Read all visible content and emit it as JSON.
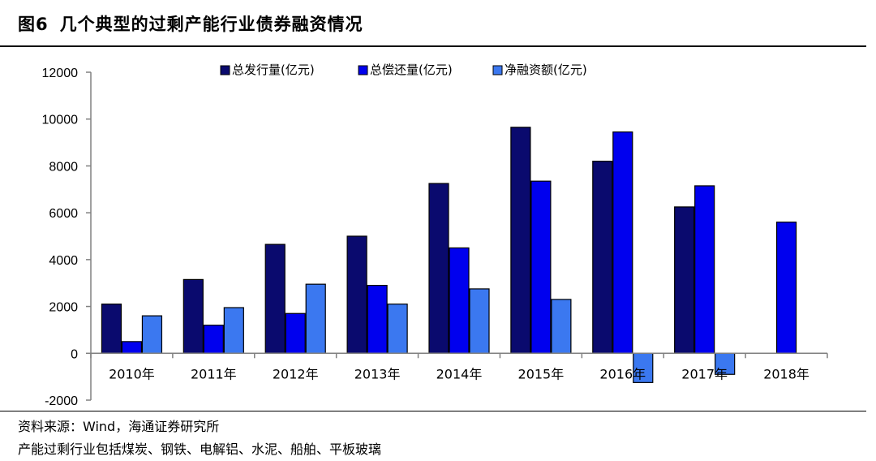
{
  "figure": {
    "number": "图6",
    "title": "几个典型的过剩产能行业债券融资情况"
  },
  "chart_data": {
    "type": "bar",
    "categories": [
      "2010年",
      "2011年",
      "2012年",
      "2013年",
      "2014年",
      "2015年",
      "2016年",
      "2017年",
      "2018年"
    ],
    "series": [
      {
        "name": "总发行量(亿元)",
        "color": "#0a0a6e",
        "values": [
          2100,
          3150,
          4650,
          5000,
          7250,
          9650,
          8200,
          6250,
          null
        ]
      },
      {
        "name": "总偿还量(亿元)",
        "color": "#0000ee",
        "values": [
          500,
          1200,
          1700,
          2900,
          4500,
          7350,
          9450,
          7150,
          5600
        ]
      },
      {
        "name": "净融资额(亿元)",
        "color": "#3b78f0",
        "values": [
          1600,
          1950,
          2950,
          2100,
          2750,
          2300,
          -1250,
          -900,
          null
        ]
      }
    ],
    "ylim": [
      -2000,
      12000
    ],
    "yticks": [
      -2000,
      0,
      2000,
      4000,
      6000,
      8000,
      10000,
      12000
    ],
    "ytick_labels": [
      "-2000",
      "0",
      "2000",
      "4000",
      "6000",
      "8000",
      "10000",
      "12000"
    ],
    "legend_position": "top-center",
    "grid": false
  },
  "notes": {
    "source": "资料来源：Wind，海通证券研究所",
    "remark": "产能过剩行业包括煤炭、钢铁、电解铝、水泥、船舶、平板玻璃"
  }
}
